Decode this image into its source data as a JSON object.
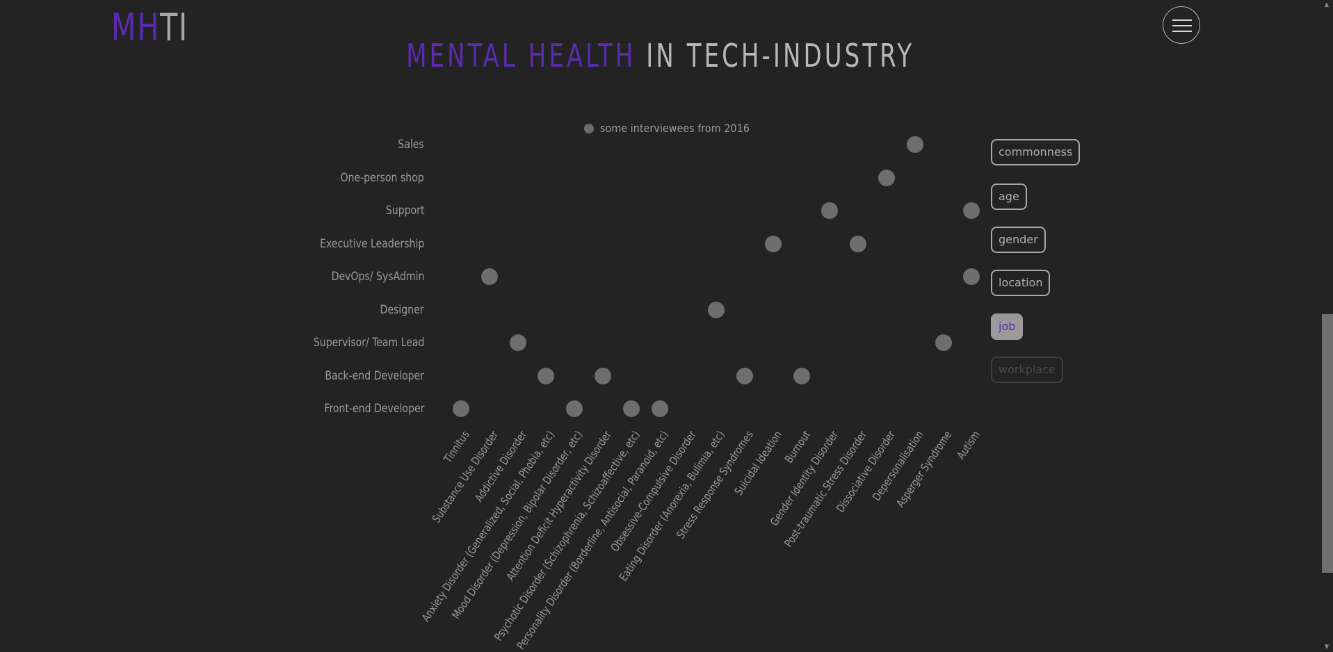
{
  "logo": {
    "accent": "MH",
    "rest": "TI"
  },
  "title": {
    "accent": "MENTAL HEALTH",
    "rest": " IN TECH-INDUSTRY"
  },
  "menu": {
    "icon": "hamburger-menu-icon"
  },
  "legend": {
    "label": "some interviewees from 2016"
  },
  "filters": [
    {
      "label": "commonness",
      "state": "normal"
    },
    {
      "label": "age",
      "state": "normal"
    },
    {
      "label": "gender",
      "state": "normal"
    },
    {
      "label": "location",
      "state": "normal"
    },
    {
      "label": "job",
      "state": "active"
    },
    {
      "label": "workplace",
      "state": "disabled"
    }
  ],
  "colors": {
    "background": "#232323",
    "accent": "#5b2bb0",
    "dot": "#6e6e6e",
    "text": "#9a9a9a"
  },
  "chart_data": {
    "type": "scatter",
    "y_categories": [
      "Sales",
      "One-person shop",
      "Support",
      "Executive Leadership",
      "DevOps/ SysAdmin",
      "Designer",
      "Supervisor/ Team Lead",
      "Back-end Developer",
      "Front-end Developer"
    ],
    "x_categories": [
      "Tinnitus",
      "Substance Use Disorder",
      "Addictive Disorder",
      "Anxiety Disorder (Generalized, Social, Phobia, etc)",
      "Mood Disorder (Depression, Bipolar Disorder, etc)",
      "Attention Deficit Hyperactivity Disorder",
      "Psychotic Disorder (Schizophrenia, Schizoaffective, etc)",
      "Personality Disorder (Borderline, Antisocial, Paranoid, etc)",
      "Obsessive-Compulsive Disorder",
      "Eating Disorder (Anorexia, Bulimia, etc)",
      "Stress Response Syndromes",
      "Suicidal Ideation",
      "Burnout",
      "Gender Identity Disorder",
      "Post-traumatic Stress Disorder",
      "Dissociative Disorder",
      "Depersonalisation",
      "Asperger Syndrome",
      "Autism"
    ],
    "points": [
      {
        "x": "Tinnitus",
        "y": "Front-end Developer"
      },
      {
        "x": "Substance Use Disorder",
        "y": "DevOps/ SysAdmin"
      },
      {
        "x": "Addictive Disorder",
        "y": "Supervisor/ Team Lead"
      },
      {
        "x": "Anxiety Disorder (Generalized, Social, Phobia, etc)",
        "y": "Back-end Developer"
      },
      {
        "x": "Mood Disorder (Depression, Bipolar Disorder, etc)",
        "y": "Front-end Developer"
      },
      {
        "x": "Attention Deficit Hyperactivity Disorder",
        "y": "Back-end Developer"
      },
      {
        "x": "Psychotic Disorder (Schizophrenia, Schizoaffective, etc)",
        "y": "Front-end Developer"
      },
      {
        "x": "Personality Disorder (Borderline, Antisocial, Paranoid, etc)",
        "y": "Front-end Developer"
      },
      {
        "x": "Eating Disorder (Anorexia, Bulimia, etc)",
        "y": "Designer"
      },
      {
        "x": "Stress Response Syndromes",
        "y": "Back-end Developer"
      },
      {
        "x": "Suicidal Ideation",
        "y": "Executive Leadership"
      },
      {
        "x": "Burnout",
        "y": "Back-end Developer"
      },
      {
        "x": "Gender Identity Disorder",
        "y": "Support"
      },
      {
        "x": "Post-traumatic Stress Disorder",
        "y": "Executive Leadership"
      },
      {
        "x": "Dissociative Disorder",
        "y": "One-person shop"
      },
      {
        "x": "Depersonalisation",
        "y": "Sales"
      },
      {
        "x": "Asperger Syndrome",
        "y": "Supervisor/ Team Lead"
      },
      {
        "x": "Autism",
        "y": "DevOps/ SysAdmin"
      },
      {
        "x": "Autism",
        "y": "Support"
      }
    ]
  }
}
